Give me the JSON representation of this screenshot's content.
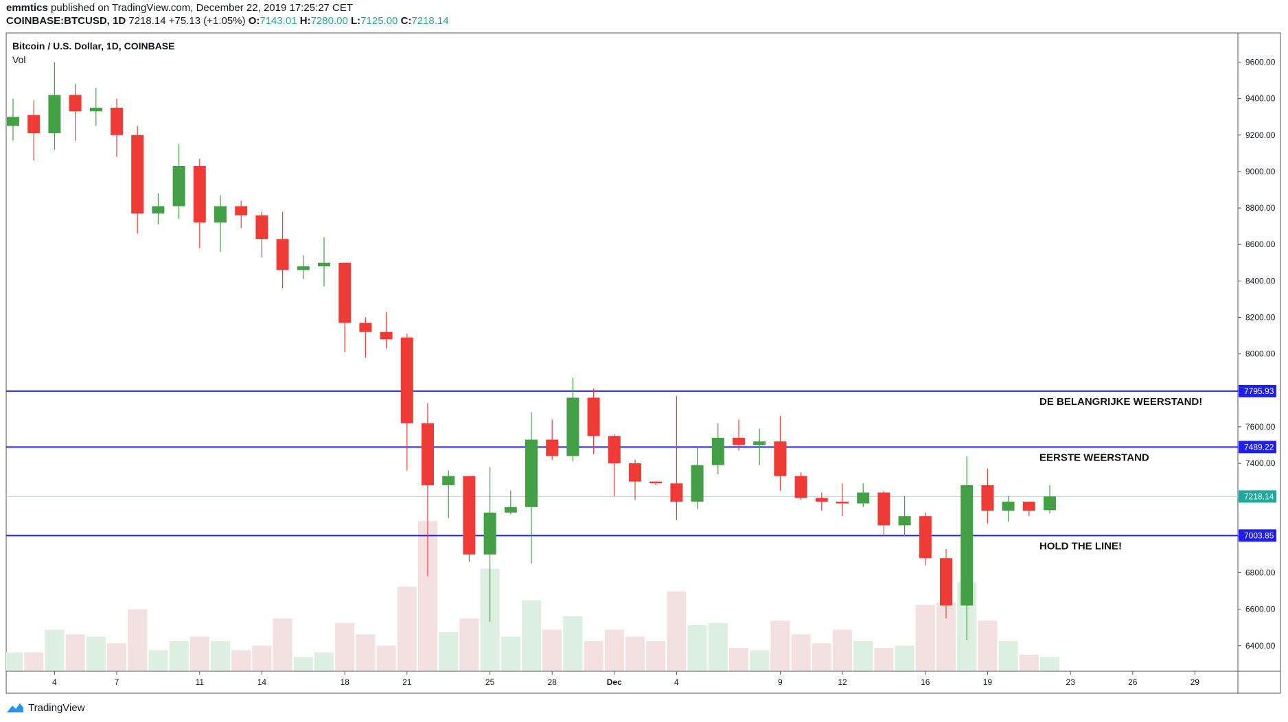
{
  "header": {
    "publisher": "emmtics",
    "published_text": "published on TradingView.com, December 22, 2019 17:25:27 CET",
    "symbol": "COINBASE:BTCUSD, 1D",
    "last": "7218.14",
    "change": "+75.13 (+1.05%)",
    "o_label": "O:",
    "o": "7143.01",
    "h_label": "H:",
    "h": "7280.00",
    "l_label": "L:",
    "l": "7125.00",
    "c_label": "C:",
    "c": "7218.14"
  },
  "pane": {
    "title": "Bitcoin / U.S. Dollar, 1D, COINBASE",
    "vol_label": "Vol"
  },
  "footer": {
    "brand": "TradingView"
  },
  "colors": {
    "up": "#43a047",
    "down": "#ef3b36",
    "level": "#1f1fe6",
    "vol_up": "#dcefe0",
    "vol_down": "#f3e1e1",
    "last": "#26a69a"
  },
  "chart_data": {
    "type": "candlestick",
    "ylim": [
      6260,
      9760
    ],
    "y_ticks": [
      "9600.00",
      "9400.00",
      "9200.00",
      "9000.00",
      "8800.00",
      "8600.00",
      "8400.00",
      "8200.00",
      "8000.00",
      "7800.00",
      "7600.00",
      "7400.00",
      "7200.00",
      "7000.00",
      "6800.00",
      "6600.00",
      "6400.00"
    ],
    "x_ticks": [
      {
        "i": 2,
        "label": "4"
      },
      {
        "i": 5,
        "label": "7"
      },
      {
        "i": 9,
        "label": "11"
      },
      {
        "i": 12,
        "label": "14"
      },
      {
        "i": 16,
        "label": "18"
      },
      {
        "i": 19,
        "label": "21"
      },
      {
        "i": 23,
        "label": "25"
      },
      {
        "i": 26,
        "label": "28"
      },
      {
        "i": 29,
        "label": "Dec"
      },
      {
        "i": 32,
        "label": "4"
      },
      {
        "i": 37,
        "label": "9"
      },
      {
        "i": 40,
        "label": "12"
      },
      {
        "i": 44,
        "label": "16"
      },
      {
        "i": 47,
        "label": "19"
      },
      {
        "i": 51,
        "label": "23"
      },
      {
        "i": 54,
        "label": "26"
      },
      {
        "i": 57,
        "label": "29"
      }
    ],
    "candles": [
      {
        "o": 9250,
        "h": 9400,
        "l": 9170,
        "c": 9300
      },
      {
        "o": 9310,
        "h": 9390,
        "l": 9060,
        "c": 9210
      },
      {
        "o": 9210,
        "h": 9600,
        "l": 9120,
        "c": 9420
      },
      {
        "o": 9420,
        "h": 9480,
        "l": 9170,
        "c": 9330
      },
      {
        "o": 9330,
        "h": 9460,
        "l": 9250,
        "c": 9350
      },
      {
        "o": 9350,
        "h": 9400,
        "l": 9080,
        "c": 9200
      },
      {
        "o": 9200,
        "h": 9250,
        "l": 8660,
        "c": 8770
      },
      {
        "o": 8770,
        "h": 8880,
        "l": 8710,
        "c": 8810
      },
      {
        "o": 8810,
        "h": 9150,
        "l": 8740,
        "c": 9030
      },
      {
        "o": 9030,
        "h": 9070,
        "l": 8580,
        "c": 8720
      },
      {
        "o": 8720,
        "h": 8870,
        "l": 8560,
        "c": 8810
      },
      {
        "o": 8810,
        "h": 8840,
        "l": 8690,
        "c": 8760
      },
      {
        "o": 8760,
        "h": 8780,
        "l": 8530,
        "c": 8630
      },
      {
        "o": 8630,
        "h": 8780,
        "l": 8360,
        "c": 8460
      },
      {
        "o": 8460,
        "h": 8540,
        "l": 8410,
        "c": 8480
      },
      {
        "o": 8480,
        "h": 8640,
        "l": 8370,
        "c": 8500
      },
      {
        "o": 8500,
        "h": 8500,
        "l": 8010,
        "c": 8170
      },
      {
        "o": 8170,
        "h": 8200,
        "l": 7980,
        "c": 8120
      },
      {
        "o": 8120,
        "h": 8230,
        "l": 8030,
        "c": 8080
      },
      {
        "o": 8090,
        "h": 8110,
        "l": 7360,
        "c": 7620
      },
      {
        "o": 7620,
        "h": 7730,
        "l": 6780,
        "c": 7280
      },
      {
        "o": 7280,
        "h": 7360,
        "l": 7100,
        "c": 7330
      },
      {
        "o": 7330,
        "h": 7330,
        "l": 6860,
        "c": 6900
      },
      {
        "o": 6900,
        "h": 7380,
        "l": 6530,
        "c": 7130
      },
      {
        "o": 7130,
        "h": 7250,
        "l": 7120,
        "c": 7160
      },
      {
        "o": 7160,
        "h": 7680,
        "l": 6850,
        "c": 7530
      },
      {
        "o": 7530,
        "h": 7640,
        "l": 7420,
        "c": 7440
      },
      {
        "o": 7440,
        "h": 7870,
        "l": 7410,
        "c": 7760
      },
      {
        "o": 7760,
        "h": 7810,
        "l": 7450,
        "c": 7550
      },
      {
        "o": 7550,
        "h": 7560,
        "l": 7220,
        "c": 7400
      },
      {
        "o": 7400,
        "h": 7420,
        "l": 7200,
        "c": 7300
      },
      {
        "o": 7300,
        "h": 7300,
        "l": 7280,
        "c": 7290
      },
      {
        "o": 7290,
        "h": 7770,
        "l": 7090,
        "c": 7190
      },
      {
        "o": 7190,
        "h": 7490,
        "l": 7150,
        "c": 7390
      },
      {
        "o": 7390,
        "h": 7620,
        "l": 7340,
        "c": 7540
      },
      {
        "o": 7540,
        "h": 7640,
        "l": 7470,
        "c": 7500
      },
      {
        "o": 7500,
        "h": 7590,
        "l": 7390,
        "c": 7520
      },
      {
        "o": 7520,
        "h": 7660,
        "l": 7250,
        "c": 7330
      },
      {
        "o": 7330,
        "h": 7350,
        "l": 7200,
        "c": 7210
      },
      {
        "o": 7210,
        "h": 7240,
        "l": 7140,
        "c": 7190
      },
      {
        "o": 7190,
        "h": 7290,
        "l": 7110,
        "c": 7180
      },
      {
        "o": 7180,
        "h": 7290,
        "l": 7160,
        "c": 7240
      },
      {
        "o": 7240,
        "h": 7250,
        "l": 7000,
        "c": 7060
      },
      {
        "o": 7060,
        "h": 7220,
        "l": 7000,
        "c": 7110
      },
      {
        "o": 7110,
        "h": 7130,
        "l": 6840,
        "c": 6880
      },
      {
        "o": 6880,
        "h": 6930,
        "l": 6550,
        "c": 6620
      },
      {
        "o": 6620,
        "h": 7440,
        "l": 6430,
        "c": 7280
      },
      {
        "o": 7280,
        "h": 7370,
        "l": 7070,
        "c": 7140
      },
      {
        "o": 7140,
        "h": 7220,
        "l": 7080,
        "c": 7190
      },
      {
        "o": 7190,
        "h": 7190,
        "l": 7110,
        "c": 7140
      },
      {
        "o": 7143.01,
        "h": 7280,
        "l": 7125,
        "c": 7218.14
      }
    ],
    "volume_heights": [
      0.08,
      0.08,
      0.18,
      0.16,
      0.15,
      0.12,
      0.27,
      0.09,
      0.13,
      0.15,
      0.13,
      0.09,
      0.11,
      0.23,
      0.06,
      0.08,
      0.21,
      0.16,
      0.11,
      0.37,
      0.66,
      0.17,
      0.23,
      0.45,
      0.15,
      0.31,
      0.18,
      0.24,
      0.13,
      0.18,
      0.15,
      0.13,
      0.35,
      0.2,
      0.21,
      0.1,
      0.09,
      0.22,
      0.16,
      0.12,
      0.18,
      0.13,
      0.1,
      0.11,
      0.29,
      0.3,
      0.39,
      0.22,
      0.13,
      0.07,
      0.06
    ],
    "levels": [
      {
        "price": 7795.93,
        "label": "7795.93",
        "annotation": "DE BELANGRIJKE WEERSTAND!"
      },
      {
        "price": 7489.22,
        "label": "7489.22",
        "annotation": "EERSTE WEERSTAND"
      },
      {
        "price": 7003.85,
        "label": "7003.85",
        "annotation": "HOLD THE LINE!"
      }
    ],
    "last_price": {
      "price": 7218.14,
      "label": "7218.14"
    }
  }
}
